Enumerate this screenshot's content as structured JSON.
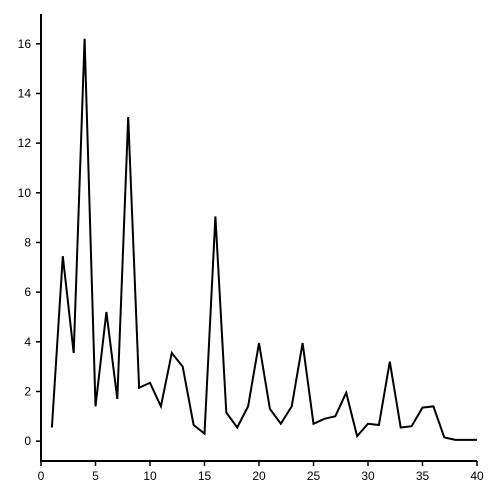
{
  "chart_data": {
    "type": "line",
    "title": "",
    "xlabel": "",
    "ylabel": "",
    "xlim": [
      0,
      40
    ],
    "ylim": [
      -0.8,
      17.2
    ],
    "x_ticks": [
      0,
      5,
      10,
      15,
      20,
      25,
      30,
      35,
      40
    ],
    "y_ticks": [
      0,
      2,
      4,
      6,
      8,
      10,
      12,
      14,
      16
    ],
    "grid": false,
    "legend": "none",
    "line_color": "#000000",
    "series": [
      {
        "x": [
          1,
          2,
          3,
          4,
          5,
          6,
          7,
          8,
          9,
          10,
          11,
          12,
          13,
          14,
          15,
          16,
          17,
          18,
          19,
          20,
          21,
          22,
          23,
          24,
          25,
          26,
          27,
          28,
          29,
          30,
          31,
          32,
          33,
          34,
          35,
          36,
          37,
          38,
          39,
          40
        ],
        "values": [
          0.55,
          7.45,
          3.55,
          16.2,
          1.4,
          5.2,
          1.7,
          13.05,
          2.15,
          2.35,
          1.4,
          3.55,
          3.0,
          0.65,
          0.3,
          9.05,
          1.15,
          0.55,
          1.4,
          3.95,
          1.3,
          0.7,
          1.4,
          3.95,
          0.7,
          0.9,
          1.0,
          1.95,
          0.2,
          0.7,
          0.65,
          3.2,
          0.55,
          0.6,
          1.35,
          1.4,
          0.15,
          0.05,
          0.05,
          0.05
        ]
      }
    ]
  }
}
